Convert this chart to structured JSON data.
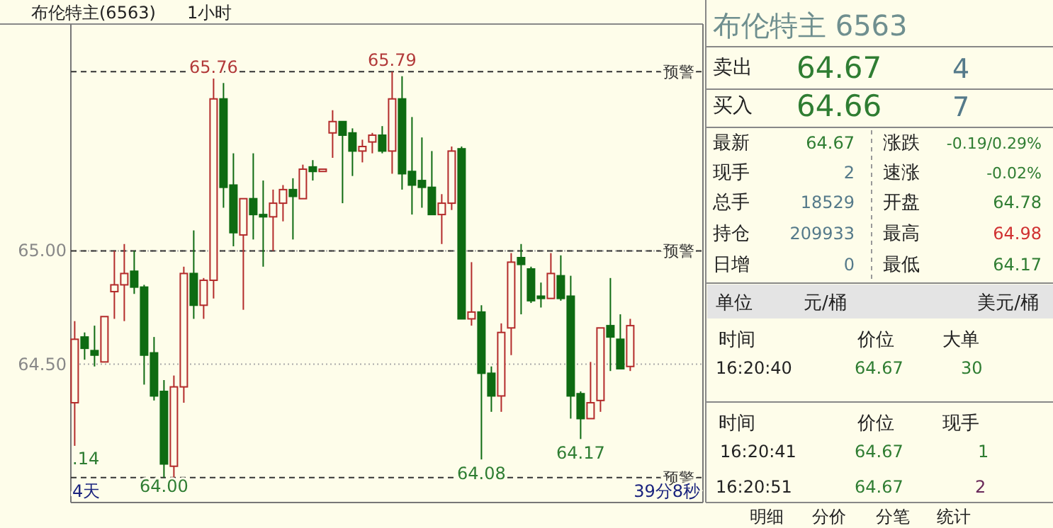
{
  "chart_data": [
    {
      "type": "candlestick",
      "title": "布伦特主(6563)",
      "subtitle": "1小时",
      "categories": [
        null,
        null,
        null,
        null,
        null,
        null,
        null,
        null,
        null,
        null,
        null,
        null,
        null,
        null,
        null,
        null,
        null,
        null,
        null,
        null,
        null,
        null,
        null,
        null,
        null,
        null,
        null,
        null,
        null,
        null,
        null,
        null,
        null,
        null,
        null,
        null,
        null,
        null,
        null,
        null,
        null,
        null,
        null,
        null,
        null,
        null,
        null,
        null,
        null,
        null,
        null,
        null,
        null,
        null,
        null,
        null,
        null
      ],
      "ohlc": [
        [
          64.33,
          64.69,
          64.14,
          64.61
        ],
        [
          64.62,
          64.64,
          64.52,
          64.57
        ],
        [
          64.56,
          64.67,
          64.49,
          64.54
        ],
        [
          64.51,
          64.71,
          64.51,
          64.71
        ],
        [
          64.82,
          65.0,
          64.7,
          64.85
        ],
        [
          64.85,
          65.03,
          64.69,
          64.9
        ],
        [
          64.91,
          65.0,
          64.81,
          64.84
        ],
        [
          64.84,
          64.85,
          64.41,
          64.54
        ],
        [
          64.55,
          64.62,
          64.34,
          64.36
        ],
        [
          64.38,
          64.43,
          64.0,
          64.06
        ],
        [
          64.05,
          64.45,
          64.0,
          64.4
        ],
        [
          64.4,
          64.93,
          64.33,
          64.9
        ],
        [
          64.9,
          65.09,
          64.7,
          64.76
        ],
        [
          64.76,
          64.88,
          64.7,
          64.87
        ],
        [
          64.87,
          65.76,
          64.79,
          65.67
        ],
        [
          65.67,
          65.74,
          65.19,
          65.28
        ],
        [
          65.29,
          65.43,
          65.02,
          65.08
        ],
        [
          65.07,
          65.23,
          64.74,
          65.23
        ],
        [
          65.23,
          65.43,
          65.05,
          65.16
        ],
        [
          65.16,
          65.31,
          64.93,
          65.15
        ],
        [
          65.15,
          65.27,
          65.0,
          65.21
        ],
        [
          65.21,
          65.29,
          65.13,
          65.27
        ],
        [
          65.27,
          65.32,
          65.05,
          65.24
        ],
        [
          65.23,
          65.38,
          65.23,
          65.36
        ],
        [
          65.37,
          65.4,
          65.31,
          65.35
        ],
        [
          65.35,
          65.36,
          65.35,
          65.36
        ],
        [
          65.52,
          65.62,
          65.41,
          65.57
        ],
        [
          65.57,
          65.57,
          65.21,
          65.51
        ],
        [
          65.52,
          65.54,
          65.33,
          65.44
        ],
        [
          65.44,
          65.49,
          65.39,
          65.46
        ],
        [
          65.48,
          65.52,
          65.43,
          65.51
        ],
        [
          65.51,
          65.55,
          65.43,
          65.44
        ],
        [
          65.44,
          65.79,
          65.34,
          65.67
        ],
        [
          65.67,
          65.77,
          65.27,
          65.34
        ],
        [
          65.35,
          65.59,
          65.16,
          65.29
        ],
        [
          65.31,
          65.5,
          65.19,
          65.28
        ],
        [
          65.28,
          65.44,
          65.16,
          65.16
        ],
        [
          65.16,
          65.25,
          65.03,
          65.21
        ],
        [
          65.21,
          65.46,
          65.18,
          65.44
        ],
        [
          65.45,
          65.46,
          64.7,
          64.7
        ],
        [
          64.7,
          64.95,
          64.67,
          64.73
        ],
        [
          64.73,
          64.76,
          64.08,
          64.46
        ],
        [
          64.46,
          64.49,
          64.29,
          64.36
        ],
        [
          64.36,
          64.68,
          64.29,
          64.64
        ],
        [
          64.66,
          64.99,
          64.54,
          64.95
        ],
        [
          64.97,
          65.03,
          64.72,
          64.94
        ],
        [
          64.92,
          64.93,
          64.77,
          64.78
        ],
        [
          64.8,
          64.86,
          64.75,
          64.79
        ],
        [
          64.79,
          64.99,
          64.79,
          64.9
        ],
        [
          64.89,
          64.98,
          64.78,
          64.79
        ],
        [
          64.8,
          64.89,
          64.26,
          64.36
        ],
        [
          64.37,
          64.38,
          64.17,
          64.26
        ],
        [
          64.26,
          64.51,
          64.26,
          64.33
        ],
        [
          64.34,
          64.66,
          64.29,
          64.66
        ],
        [
          64.67,
          64.88,
          64.47,
          64.62
        ],
        [
          64.61,
          64.72,
          64.48,
          64.48
        ],
        [
          64.49,
          64.7,
          64.47,
          64.67
        ]
      ],
      "ylim": [
        63.89,
        66.0
      ],
      "yticks": [
        {
          "value": 65.0,
          "label": "65.00"
        },
        {
          "value": 64.5,
          "label": "64.50"
        }
      ],
      "grid": "y",
      "ref_lines": [
        {
          "axis": "y",
          "value": 65.79,
          "label": "预警",
          "line_style": "dashed"
        },
        {
          "axis": "y",
          "value": 65.0,
          "label": "预警",
          "line_style": "dashed"
        },
        {
          "axis": "y",
          "value": 64.0,
          "label": "预警",
          "line_style": "dashed"
        }
      ],
      "annotations": [
        {
          "text": "65.76",
          "y": 65.76
        },
        {
          "text": "65.79",
          "y": 65.79
        },
        ".14",
        {
          "text": "64.00",
          "y": 64.0
        },
        {
          "text": "64.08",
          "y": 64.08
        },
        {
          "text": "64.17",
          "y": 64.17
        },
        "4天",
        "39分8秒"
      ]
    },
    {
      "type": "other",
      "annotations": [
        "布伦特主 6563",
        "卖出",
        "64.67",
        "4",
        "买入",
        "64.66",
        "7",
        "最新",
        "64.67",
        "涨跌",
        "-0.19/0.29%",
        "现手",
        "2",
        "速涨",
        "-0.02%",
        "总手",
        "18529",
        "开盘",
        "64.78",
        "持仓",
        "209933",
        "最高",
        "64.98",
        "日增",
        "0",
        "最低",
        "64.17",
        "单位",
        "元/桶",
        "美元/桶",
        "时间",
        "价位",
        "大单",
        "16:20:40",
        "64.67",
        "30",
        "时间",
        "价位",
        "现手",
        "16:20:41",
        "64.67",
        "1",
        "16:20:51",
        "64.67",
        "2",
        "明细",
        "分价",
        "分笔",
        "统计"
      ]
    }
  ]
}
